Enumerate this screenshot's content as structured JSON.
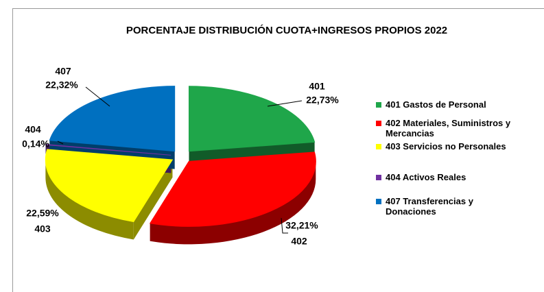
{
  "chart_data": {
    "type": "pie3d",
    "title": "PORCENTAJE DISTRIBUCIÓN CUOTA+INGRESOS PROPIOS 2022",
    "categories": [
      "401 Gastos de Personal",
      "402 Materiales, Suministros y Mercancias",
      "403 Servicios no Personales",
      "404 Activos Reales",
      "407 Transferencias y Donaciones"
    ],
    "codes": [
      "401",
      "402",
      "403",
      "404",
      "407"
    ],
    "values": [
      22.73,
      32.21,
      22.59,
      0.14,
      22.32
    ],
    "value_labels": [
      "22,73%",
      "32,21%",
      "22,59%",
      "0,14%",
      "22,32%"
    ],
    "colors": [
      "#1fa64a",
      "#ff0000",
      "#ffff00",
      "#7030a0",
      "#0070c0"
    ]
  }
}
